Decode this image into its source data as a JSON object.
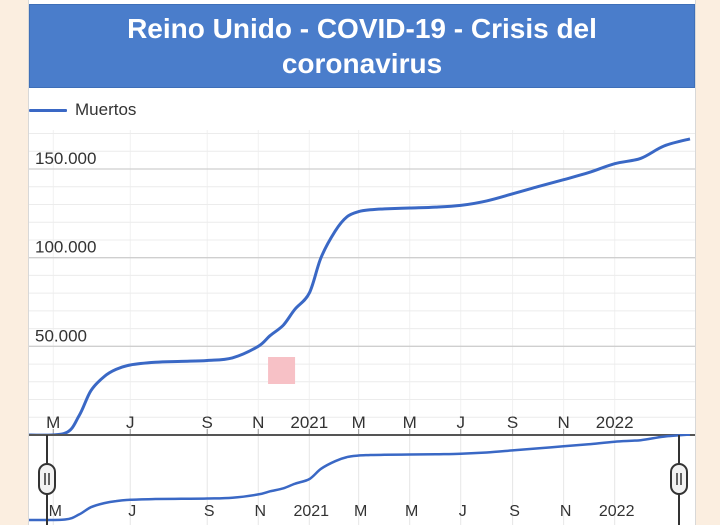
{
  "title": "Reino Unido - COVID-19 - Crisis del coronavirus",
  "colors": {
    "header_bg": "#4a7dcb",
    "series": "#3a68c5",
    "page_bg": "#fbeee0",
    "marker": "#f7c1c6"
  },
  "chart_data": {
    "type": "line",
    "title": "Reino Unido - COVID-19 - Crisis del coronavirus",
    "xlabel": "",
    "ylabel": "",
    "legend": "top-left",
    "grid": true,
    "y_tick_labels": [
      "50.000",
      "100.000",
      "150.000"
    ],
    "y_ticks": [
      50000,
      100000,
      150000
    ],
    "ylim": [
      0,
      172000
    ],
    "xlim": [
      "2020-02-01",
      "2022-04-07"
    ],
    "x_tick_labels": [
      {
        "label": "M",
        "date": "2020-03-01"
      },
      {
        "label": "J",
        "date": "2020-06-01"
      },
      {
        "label": "S",
        "date": "2020-09-01"
      },
      {
        "label": "N",
        "date": "2020-11-01"
      },
      {
        "label": "2021",
        "date": "2021-01-01"
      },
      {
        "label": "M",
        "date": "2021-03-01"
      },
      {
        "label": "M",
        "date": "2021-05-01"
      },
      {
        "label": "J",
        "date": "2021-07-01"
      },
      {
        "label": "S",
        "date": "2021-09-01"
      },
      {
        "label": "N",
        "date": "2021-11-01"
      },
      {
        "label": "2022",
        "date": "2022-01-01"
      }
    ],
    "series": [
      {
        "name": "Muertos",
        "x": [
          "2020-02-01",
          "2020-03-15",
          "2020-04-01",
          "2020-04-15",
          "2020-05-01",
          "2020-05-15",
          "2020-06-01",
          "2020-07-01",
          "2020-08-01",
          "2020-09-01",
          "2020-10-01",
          "2020-11-01",
          "2020-11-15",
          "2020-12-01",
          "2020-12-15",
          "2021-01-01",
          "2021-01-15",
          "2021-02-01",
          "2021-02-15",
          "2021-03-01",
          "2021-03-15",
          "2021-04-01",
          "2021-05-01",
          "2021-06-01",
          "2021-07-01",
          "2021-08-01",
          "2021-09-01",
          "2021-10-01",
          "2021-11-01",
          "2021-12-01",
          "2022-01-01",
          "2022-02-01",
          "2022-03-01",
          "2022-04-01"
        ],
        "values": [
          0,
          1000,
          11000,
          25000,
          33000,
          37000,
          39500,
          41000,
          41500,
          42000,
          43500,
          50000,
          56000,
          62000,
          71000,
          80000,
          100000,
          115000,
          123000,
          126000,
          127000,
          127500,
          128000,
          128500,
          129500,
          132000,
          136000,
          140000,
          144000,
          148000,
          153000,
          156000,
          163000,
          167000
        ]
      }
    ]
  },
  "navigator": {
    "x_tick_labels": [
      "M",
      "J",
      "S",
      "N",
      "2021",
      "M",
      "M",
      "J",
      "S",
      "N",
      "2022"
    ]
  }
}
